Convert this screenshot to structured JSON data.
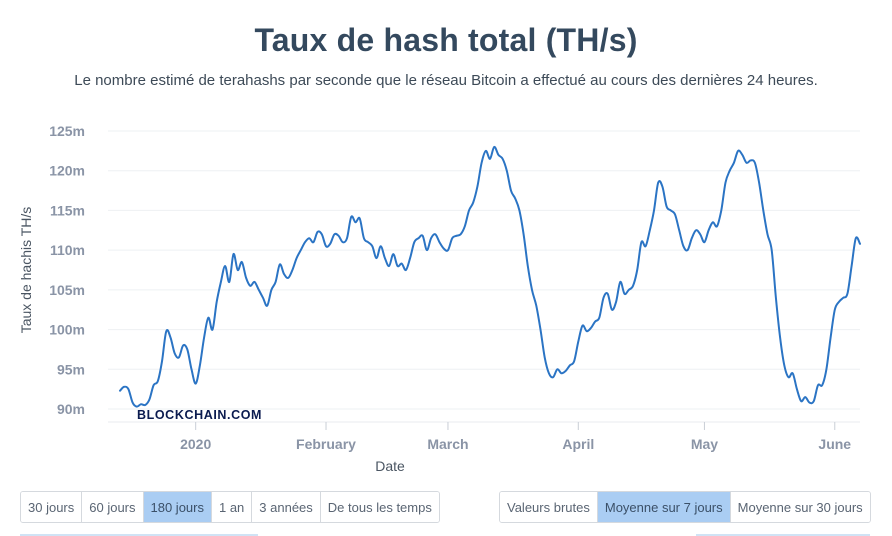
{
  "header": {
    "title": "Taux de hash total (TH/s)",
    "subtitle": "Le nombre estimé de terahashs par seconde que le réseau Bitcoin a effectué au cours des dernières 24 heures."
  },
  "chart_data": {
    "type": "line",
    "title": "Taux de hash total (TH/s)",
    "xlabel": "Date",
    "ylabel": "Taux de hachis TH/s",
    "ylim": [
      90,
      125
    ],
    "y_ticks": [
      "90m",
      "95m",
      "100m",
      "105m",
      "110m",
      "115m",
      "120m",
      "125m"
    ],
    "y_tick_values": [
      90,
      95,
      100,
      105,
      110,
      115,
      120,
      125
    ],
    "x_ticks": [
      {
        "label": "2020",
        "day": 18
      },
      {
        "label": "February",
        "day": 49
      },
      {
        "label": "March",
        "day": 78
      },
      {
        "label": "April",
        "day": 109
      },
      {
        "label": "May",
        "day": 139
      },
      {
        "label": "June",
        "day": 170
      }
    ],
    "color": "#2b74c4",
    "grid": true,
    "series": [
      {
        "name": "",
        "points": [
          [
            0,
            92.3
          ],
          [
            1,
            92.8
          ],
          [
            2,
            92.5
          ],
          [
            3,
            90.8
          ],
          [
            4,
            90.3
          ],
          [
            5,
            90.6
          ],
          [
            6,
            90.5
          ],
          [
            7,
            91.2
          ],
          [
            8,
            93.0
          ],
          [
            9,
            93.5
          ],
          [
            10,
            96.0
          ],
          [
            11,
            99.8
          ],
          [
            12,
            99.0
          ],
          [
            13,
            97.0
          ],
          [
            14,
            96.5
          ],
          [
            15,
            98.0
          ],
          [
            16,
            97.5
          ],
          [
            17,
            95.0
          ],
          [
            18,
            93.2
          ],
          [
            19,
            95.5
          ],
          [
            20,
            99.0
          ],
          [
            21,
            101.5
          ],
          [
            22,
            100.0
          ],
          [
            23,
            103.5
          ],
          [
            24,
            106.0
          ],
          [
            25,
            108.0
          ],
          [
            26,
            106.0
          ],
          [
            27,
            109.5
          ],
          [
            28,
            107.5
          ],
          [
            29,
            108.5
          ],
          [
            30,
            106.5
          ],
          [
            31,
            105.5
          ],
          [
            32,
            106.0
          ],
          [
            33,
            105.0
          ],
          [
            34,
            104.0
          ],
          [
            35,
            103.0
          ],
          [
            36,
            105.0
          ],
          [
            37,
            106.0
          ],
          [
            38,
            108.2
          ],
          [
            39,
            107.0
          ],
          [
            40,
            106.5
          ],
          [
            41,
            107.5
          ],
          [
            42,
            109.0
          ],
          [
            43,
            110.0
          ],
          [
            44,
            111.0
          ],
          [
            45,
            111.5
          ],
          [
            46,
            111.0
          ],
          [
            47,
            112.3
          ],
          [
            48,
            112.0
          ],
          [
            49,
            110.5
          ],
          [
            50,
            110.8
          ],
          [
            51,
            112.0
          ],
          [
            52,
            111.8
          ],
          [
            53,
            111.0
          ],
          [
            54,
            111.5
          ],
          [
            55,
            114.2
          ],
          [
            56,
            113.5
          ],
          [
            57,
            114.0
          ],
          [
            58,
            111.5
          ],
          [
            59,
            111.0
          ],
          [
            60,
            110.5
          ],
          [
            61,
            109.0
          ],
          [
            62,
            110.5
          ],
          [
            63,
            109.0
          ],
          [
            64,
            108.0
          ],
          [
            65,
            109.5
          ],
          [
            66,
            108.0
          ],
          [
            67,
            108.3
          ],
          [
            68,
            107.5
          ],
          [
            69,
            109.0
          ],
          [
            70,
            111.0
          ],
          [
            71,
            111.5
          ],
          [
            72,
            111.8
          ],
          [
            73,
            110.0
          ],
          [
            74,
            111.5
          ],
          [
            75,
            112.0
          ],
          [
            76,
            111.0
          ],
          [
            77,
            110.2
          ],
          [
            78,
            110.0
          ],
          [
            79,
            111.5
          ],
          [
            80,
            111.8
          ],
          [
            81,
            112.0
          ],
          [
            82,
            113.0
          ],
          [
            83,
            115.0
          ],
          [
            84,
            116.0
          ],
          [
            85,
            118.0
          ],
          [
            86,
            121.0
          ],
          [
            87,
            122.5
          ],
          [
            88,
            121.5
          ],
          [
            89,
            123.0
          ],
          [
            90,
            122.0
          ],
          [
            91,
            121.5
          ],
          [
            92,
            120.0
          ],
          [
            93,
            117.5
          ],
          [
            94,
            116.5
          ],
          [
            95,
            115.0
          ],
          [
            96,
            112.0
          ],
          [
            97,
            108.0
          ],
          [
            98,
            105.0
          ],
          [
            99,
            103.0
          ],
          [
            100,
            100.0
          ],
          [
            101,
            96.5
          ],
          [
            102,
            94.5
          ],
          [
            103,
            94.0
          ],
          [
            104,
            95.0
          ],
          [
            105,
            94.5
          ],
          [
            106,
            94.8
          ],
          [
            107,
            95.5
          ],
          [
            108,
            96.0
          ],
          [
            109,
            98.5
          ],
          [
            110,
            100.5
          ],
          [
            111,
            99.8
          ],
          [
            112,
            100.2
          ],
          [
            113,
            101.0
          ],
          [
            114,
            101.5
          ],
          [
            115,
            104.0
          ],
          [
            116,
            104.5
          ],
          [
            117,
            102.5
          ],
          [
            118,
            103.5
          ],
          [
            119,
            106.0
          ],
          [
            120,
            104.5
          ],
          [
            121,
            105.0
          ],
          [
            122,
            105.5
          ],
          [
            123,
            107.5
          ],
          [
            124,
            111.0
          ],
          [
            125,
            110.5
          ],
          [
            126,
            112.5
          ],
          [
            127,
            115.0
          ],
          [
            128,
            118.5
          ],
          [
            129,
            118.0
          ],
          [
            130,
            115.5
          ],
          [
            131,
            115.0
          ],
          [
            132,
            114.5
          ],
          [
            133,
            112.5
          ],
          [
            134,
            110.5
          ],
          [
            135,
            110.0
          ],
          [
            136,
            111.5
          ],
          [
            137,
            112.5
          ],
          [
            138,
            112.0
          ],
          [
            139,
            111.0
          ],
          [
            140,
            112.5
          ],
          [
            141,
            113.5
          ],
          [
            142,
            113.0
          ],
          [
            143,
            115.0
          ],
          [
            144,
            118.5
          ],
          [
            145,
            120.0
          ],
          [
            146,
            121.0
          ],
          [
            147,
            122.5
          ],
          [
            148,
            122.0
          ],
          [
            149,
            121.0
          ],
          [
            150,
            121.3
          ],
          [
            151,
            121.0
          ],
          [
            152,
            118.5
          ],
          [
            153,
            115.0
          ],
          [
            154,
            112.0
          ],
          [
            155,
            110.0
          ],
          [
            156,
            104.0
          ],
          [
            157,
            99.0
          ],
          [
            158,
            95.5
          ],
          [
            159,
            94.0
          ],
          [
            160,
            94.5
          ],
          [
            161,
            92.5
          ],
          [
            162,
            91.0
          ],
          [
            163,
            91.5
          ],
          [
            164,
            90.8
          ],
          [
            165,
            91.0
          ],
          [
            166,
            93.0
          ],
          [
            167,
            93.0
          ],
          [
            168,
            95.0
          ],
          [
            169,
            99.0
          ],
          [
            170,
            102.5
          ],
          [
            171,
            103.5
          ],
          [
            172,
            104.0
          ],
          [
            173,
            104.5
          ],
          [
            174,
            108.0
          ],
          [
            175,
            111.5
          ],
          [
            176,
            110.8
          ]
        ]
      }
    ]
  },
  "watermark": "BLOCKCHAIN.COM",
  "period_buttons": [
    {
      "label": "30 jours",
      "active": false
    },
    {
      "label": "60 jours",
      "active": false
    },
    {
      "label": "180 jours",
      "active": true
    },
    {
      "label": "1 an",
      "active": false
    },
    {
      "label": "3 années",
      "active": false
    },
    {
      "label": "De tous les temps",
      "active": false
    }
  ],
  "average_buttons": [
    {
      "label": "Valeurs brutes",
      "active": false
    },
    {
      "label": "Moyenne sur 7 jours",
      "active": true
    },
    {
      "label": "Moyenne sur 30 jours",
      "active": false
    }
  ]
}
